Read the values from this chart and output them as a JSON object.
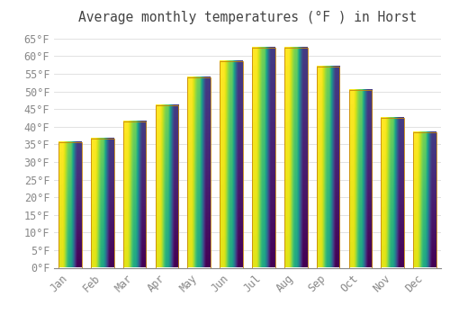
{
  "title": "Average monthly temperatures (°F ) in Horst",
  "months": [
    "Jan",
    "Feb",
    "Mar",
    "Apr",
    "May",
    "Jun",
    "Jul",
    "Aug",
    "Sep",
    "Oct",
    "Nov",
    "Dec"
  ],
  "values": [
    35.5,
    36.5,
    41.5,
    46.0,
    54.0,
    58.5,
    62.5,
    62.5,
    57.0,
    50.5,
    42.5,
    38.5
  ],
  "bar_color_bottom": "#F5A623",
  "bar_color_top": "#FFD04A",
  "bar_edge_color": "#C8860A",
  "background_color": "#FFFFFF",
  "grid_color": "#DDDDDD",
  "title_color": "#444444",
  "tick_color": "#888888",
  "ylim": [
    0,
    67
  ],
  "yticks": [
    0,
    5,
    10,
    15,
    20,
    25,
    30,
    35,
    40,
    45,
    50,
    55,
    60,
    65
  ],
  "title_fontsize": 10.5,
  "tick_fontsize": 8.5
}
